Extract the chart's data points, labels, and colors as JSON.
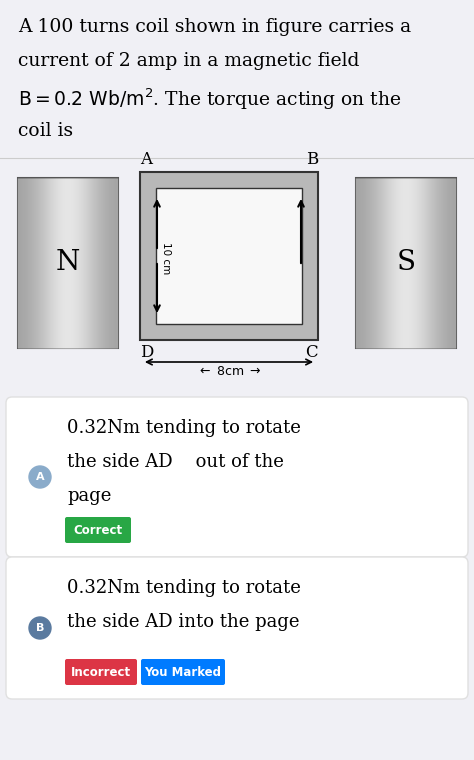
{
  "bg_color": "#f0f0f5",
  "title_line1": "A 100 turns coil shown in figure carries a",
  "title_line2": "current of 2 amp in a magnetic field",
  "title_line3": "B = 0.2 Wb/m². The torque acting on the",
  "title_line4": "coil is",
  "option_A_line1": "0.32Nm tending to rotate",
  "option_A_line2": "the side AD    out of the",
  "option_A_line3": "page",
  "option_A_badge": "Correct",
  "option_A_badge_color": "#28a745",
  "option_B_line1": "0.32Nm tending to rotate",
  "option_B_line2": "the side AD into the page",
  "option_B_badge1": "Incorrect",
  "option_B_badge1_color": "#dc3545",
  "option_B_badge2": "You Marked",
  "option_B_badge2_color": "#007bff",
  "circle_A_color": "#8aabca",
  "circle_B_color": "#5a7a9f",
  "card_bg": "#ffffff",
  "card_edge": "#e0e0e0"
}
